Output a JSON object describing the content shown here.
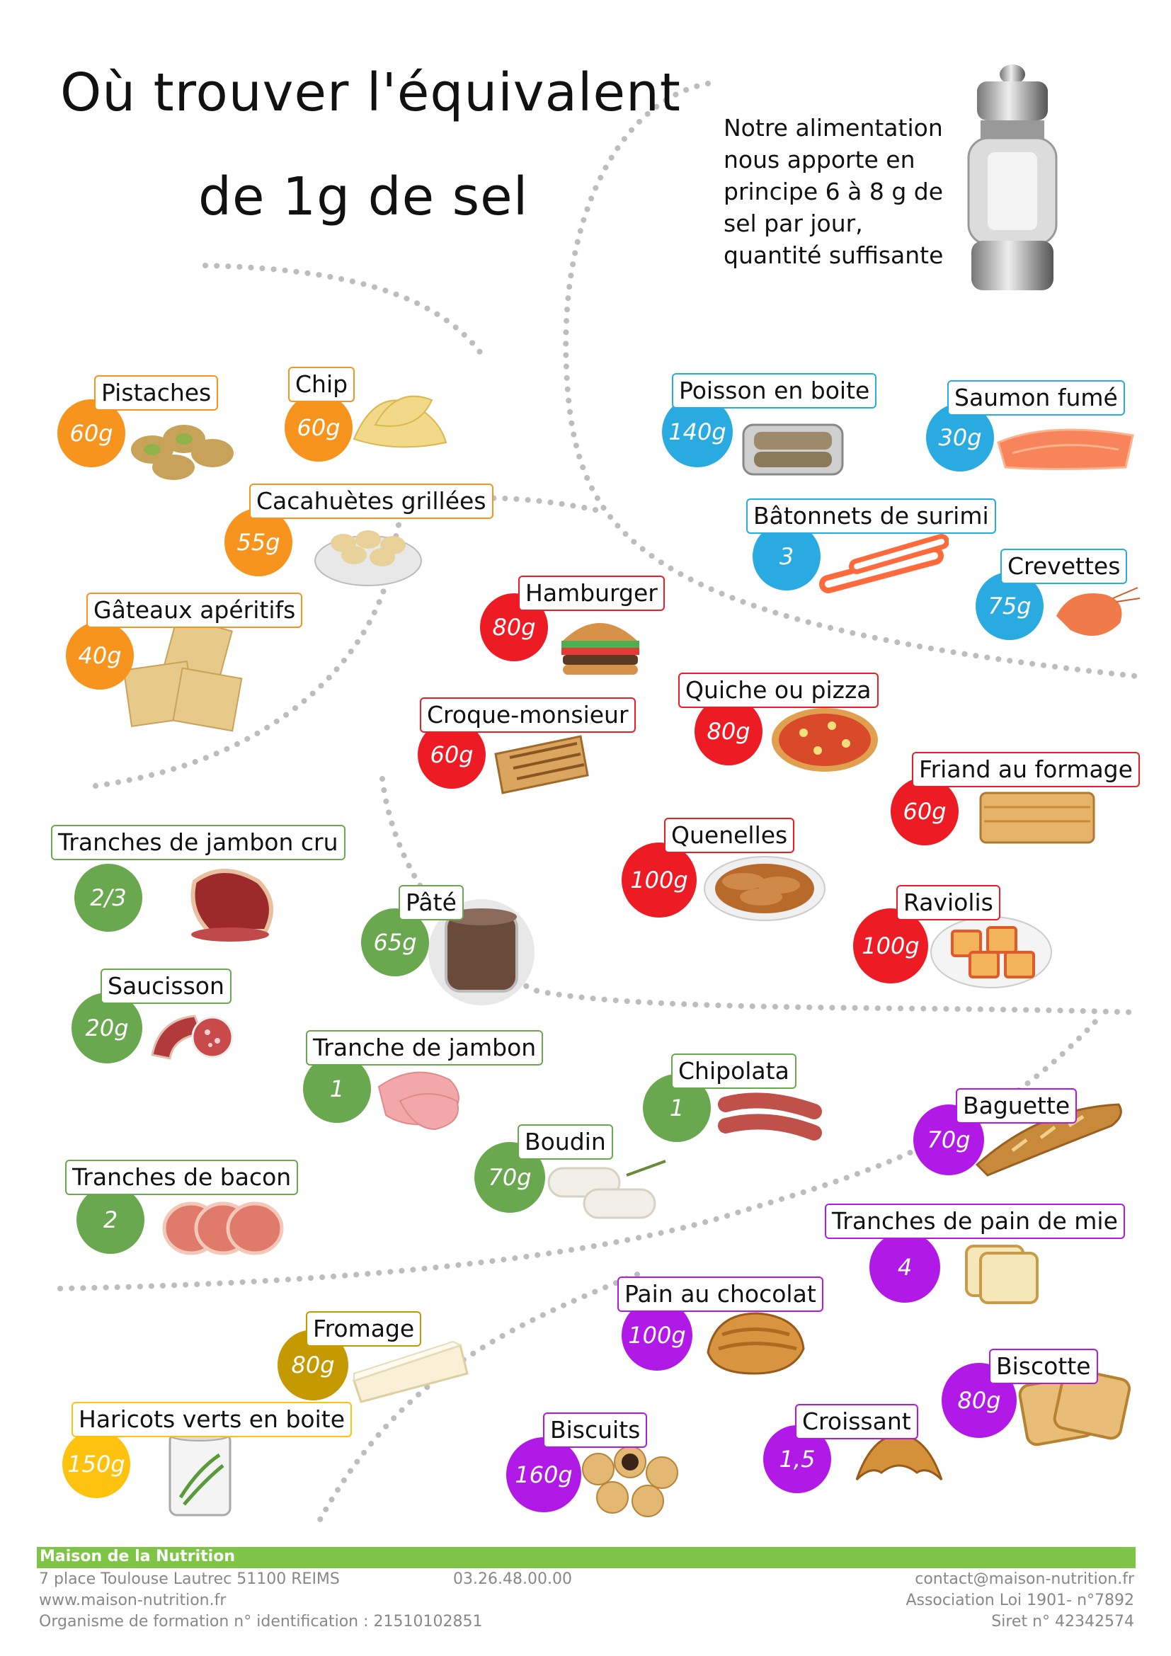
{
  "title": {
    "line1": "Où trouver l'équivalent",
    "line2": "de 1g de sel"
  },
  "intro": "Notre alimentation nous apporte en principe 6 à 8 g de sel par jour, quantité suffisante",
  "colors": {
    "apero": "#f7941d",
    "fish": "#29abe2",
    "meal": "#ed1c24",
    "charcuterie": "#6aa84f",
    "bread": "#b11ae6",
    "cheese": "#c49a00",
    "veg": "#ffc20e",
    "footer": "#7ec447"
  },
  "items": [
    {
      "id": "pistaches",
      "label": "Pistaches",
      "qty": "60g",
      "group": "apero",
      "icon": "pistachio-icon"
    },
    {
      "id": "chip",
      "label": "Chip",
      "qty": "60g",
      "group": "apero",
      "icon": "chips-icon"
    },
    {
      "id": "cacahuetes",
      "label": "Cacahuètes grillées",
      "qty": "55g",
      "group": "apero",
      "icon": "peanuts-icon"
    },
    {
      "id": "gateaux",
      "label": "Gâteaux apéritifs",
      "qty": "40g",
      "group": "apero",
      "icon": "crackers-icon"
    },
    {
      "id": "poisson",
      "label": "Poisson en boite",
      "qty": "140g",
      "group": "fish",
      "icon": "canned-fish-icon"
    },
    {
      "id": "saumon",
      "label": "Saumon fumé",
      "qty": "30g",
      "group": "fish",
      "icon": "salmon-icon"
    },
    {
      "id": "surimi",
      "label": "Bâtonnets de surimi",
      "qty": "3",
      "group": "fish",
      "icon": "surimi-icon"
    },
    {
      "id": "crevettes",
      "label": "Crevettes",
      "qty": "75g",
      "group": "fish",
      "icon": "shrimp-icon"
    },
    {
      "id": "hamburger",
      "label": "Hamburger",
      "qty": "80g",
      "group": "meal",
      "icon": "burger-icon"
    },
    {
      "id": "croque",
      "label": "Croque-monsieur",
      "qty": "60g",
      "group": "meal",
      "icon": "sandwich-icon"
    },
    {
      "id": "quiche",
      "label": "Quiche ou pizza",
      "qty": "80g",
      "group": "meal",
      "icon": "pizza-icon"
    },
    {
      "id": "friand",
      "label": "Friand au formage",
      "qty": "60g",
      "group": "meal",
      "icon": "pastry-icon"
    },
    {
      "id": "quenelles",
      "label": "Quenelles",
      "qty": "100g",
      "group": "meal",
      "icon": "quenelles-icon"
    },
    {
      "id": "raviolis",
      "label": "Raviolis",
      "qty": "100g",
      "group": "meal",
      "icon": "ravioli-icon"
    },
    {
      "id": "jamboncru",
      "label": "Tranches de jambon cru",
      "qty": "2/3",
      "group": "charcuterie",
      "icon": "ham-icon"
    },
    {
      "id": "pate",
      "label": "Pâté",
      "qty": "65g",
      "group": "charcuterie",
      "icon": "pate-jar-icon"
    },
    {
      "id": "saucisson",
      "label": "Saucisson",
      "qty": "20g",
      "group": "charcuterie",
      "icon": "sausage-icon"
    },
    {
      "id": "jambon",
      "label": "Tranche de jambon",
      "qty": "1",
      "group": "charcuterie",
      "icon": "ham-slice-icon"
    },
    {
      "id": "chipolata",
      "label": "Chipolata",
      "qty": "1",
      "group": "charcuterie",
      "icon": "chipolata-icon"
    },
    {
      "id": "boudin",
      "label": "Boudin",
      "qty": "70g",
      "group": "charcuterie",
      "icon": "boudin-icon"
    },
    {
      "id": "bacon",
      "label": "Tranches de bacon",
      "qty": "2",
      "group": "charcuterie",
      "icon": "bacon-icon"
    },
    {
      "id": "baguette",
      "label": "Baguette",
      "qty": "70g",
      "group": "bread",
      "icon": "baguette-icon"
    },
    {
      "id": "painmie",
      "label": "Tranches de pain de mie",
      "qty": "4",
      "group": "bread",
      "icon": "bread-slice-icon"
    },
    {
      "id": "painchoc",
      "label": "Pain au chocolat",
      "qty": "100g",
      "group": "bread",
      "icon": "pain-chocolat-icon"
    },
    {
      "id": "biscotte",
      "label": "Biscotte",
      "qty": "80g",
      "group": "bread",
      "icon": "biscotte-icon"
    },
    {
      "id": "croissant",
      "label": "Croissant",
      "qty": "1,5",
      "group": "bread",
      "icon": "croissant-icon"
    },
    {
      "id": "biscuits",
      "label": "Biscuits",
      "qty": "160g",
      "group": "bread",
      "icon": "biscuits-icon"
    },
    {
      "id": "fromage",
      "label": "Fromage",
      "qty": "80g",
      "group": "cheese",
      "icon": "cheese-icon"
    },
    {
      "id": "haricots",
      "label": "Haricots verts en boite",
      "qty": "150g",
      "group": "veg",
      "icon": "green-beans-can-icon"
    }
  ],
  "footer": {
    "org": "Maison de la Nutrition",
    "address": "7 place Toulouse Lautrec 51100 REIMS",
    "phone": "03.26.48.00.00",
    "website": "www.maison-nutrition.fr",
    "training": "Organisme de formation n° identification : 21510102851",
    "email": "contact@maison-nutrition.fr",
    "association": "Association Loi 1901- n°7892",
    "siret": "Siret n° 42342574"
  }
}
